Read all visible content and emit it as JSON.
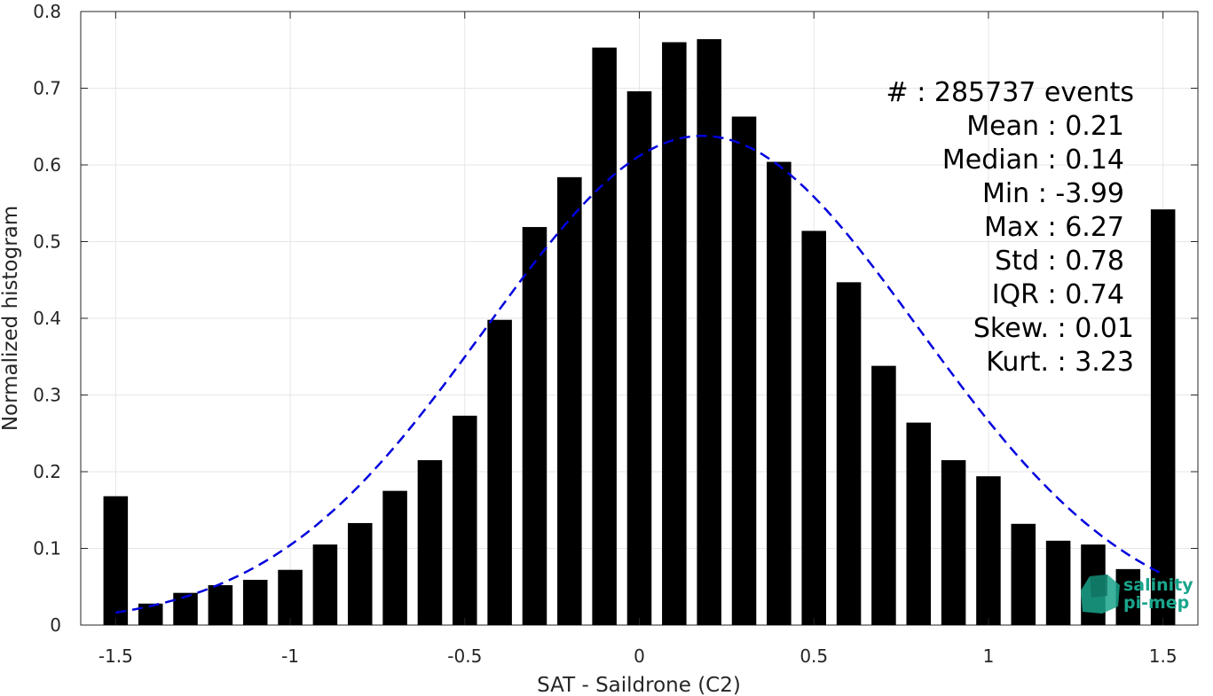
{
  "chart_data": {
    "type": "bar",
    "xlabel": "SAT - Saildrone (C2)",
    "ylabel": "Normalized histogram",
    "xlim": [
      -1.6,
      1.6
    ],
    "ylim": [
      0,
      0.8
    ],
    "grid": true,
    "x_ticks": [
      -1.5,
      -1,
      -0.5,
      0,
      0.5,
      1,
      1.5
    ],
    "x_tick_labels": [
      "-1.5",
      "-1",
      "-0.5",
      "0",
      "0.5",
      "1",
      "1.5"
    ],
    "y_ticks": [
      0,
      0.1,
      0.2,
      0.3,
      0.4,
      0.5,
      0.6,
      0.7,
      0.8
    ],
    "y_tick_labels": [
      "0",
      "0.1",
      "0.2",
      "0.3",
      "0.4",
      "0.5",
      "0.6",
      "0.7",
      "0.8"
    ],
    "bar_width": 0.07,
    "bars": {
      "x": [
        -1.5,
        -1.4,
        -1.3,
        -1.2,
        -1.1,
        -1.0,
        -0.9,
        -0.8,
        -0.7,
        -0.6,
        -0.5,
        -0.4,
        -0.3,
        -0.2,
        -0.1,
        0.0,
        0.1,
        0.2,
        0.3,
        0.4,
        0.5,
        0.6,
        0.7,
        0.8,
        0.9,
        1.0,
        1.1,
        1.2,
        1.3,
        1.4,
        1.5
      ],
      "values": [
        0.168,
        0.028,
        0.042,
        0.052,
        0.059,
        0.072,
        0.105,
        0.133,
        0.175,
        0.215,
        0.273,
        0.398,
        0.519,
        0.584,
        0.753,
        0.696,
        0.76,
        0.764,
        0.663,
        0.604,
        0.514,
        0.447,
        0.338,
        0.264,
        0.215,
        0.194,
        0.132,
        0.11,
        0.105,
        0.073,
        0.542
      ],
      "color": "#000000"
    },
    "fit_curve": {
      "style": "dashed",
      "color": "#0000dd",
      "mean": 0.18,
      "std": 0.62,
      "peak": 0.638,
      "x_range": [
        -1.5,
        1.5
      ]
    },
    "annotations": [
      "#  : 285737 events",
      "Mean : 0.21",
      "Median : 0.14",
      "Min : -3.99",
      "Max : 6.27",
      "Std : 0.78",
      "IQR : 0.74",
      "Skew. : 0.01",
      "Kurt. : 3.23"
    ]
  },
  "logo": {
    "name": "salinity-pimep-logo",
    "line1": "salinity",
    "line2": "pi-mep",
    "color": "#1aa58c"
  }
}
